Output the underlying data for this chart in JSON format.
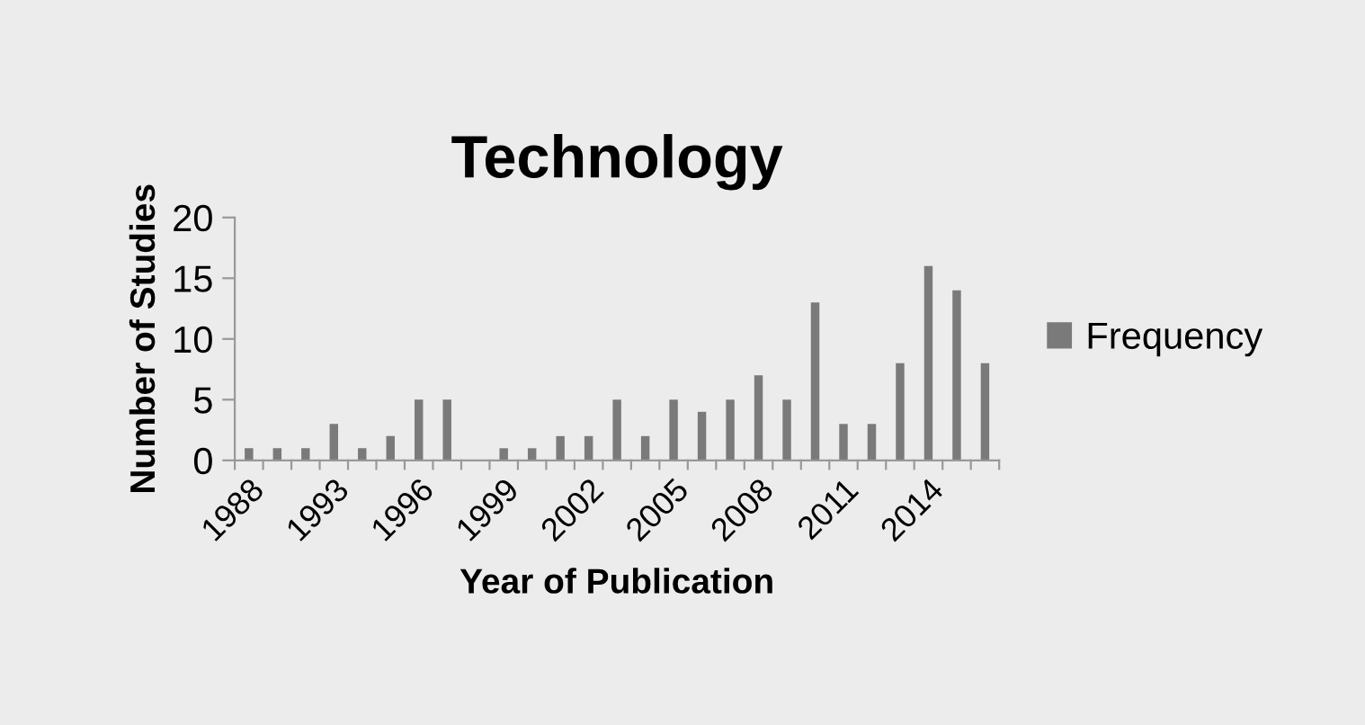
{
  "chart_data": {
    "type": "bar",
    "title": "Technology",
    "xlabel": "Year of Publication",
    "ylabel": "Number of Studies",
    "categories": [
      "1988",
      null,
      null,
      "1993",
      null,
      null,
      "1996",
      null,
      null,
      "1999",
      null,
      null,
      "2002",
      null,
      null,
      "2005",
      null,
      null,
      "2008",
      null,
      null,
      "2011",
      null,
      null,
      "2014",
      null,
      null
    ],
    "series": [
      {
        "name": "Frequency",
        "color": "#7a7a7a",
        "values": [
          1,
          1,
          1,
          3,
          1,
          2,
          5,
          5,
          null,
          1,
          1,
          2,
          2,
          5,
          2,
          5,
          4,
          5,
          7,
          5,
          13,
          3,
          3,
          8,
          16,
          14,
          8
        ]
      }
    ],
    "ylim": [
      0,
      20
    ],
    "yticks": [
      0,
      5,
      10,
      15,
      20
    ],
    "grid": false,
    "legend": "right"
  }
}
